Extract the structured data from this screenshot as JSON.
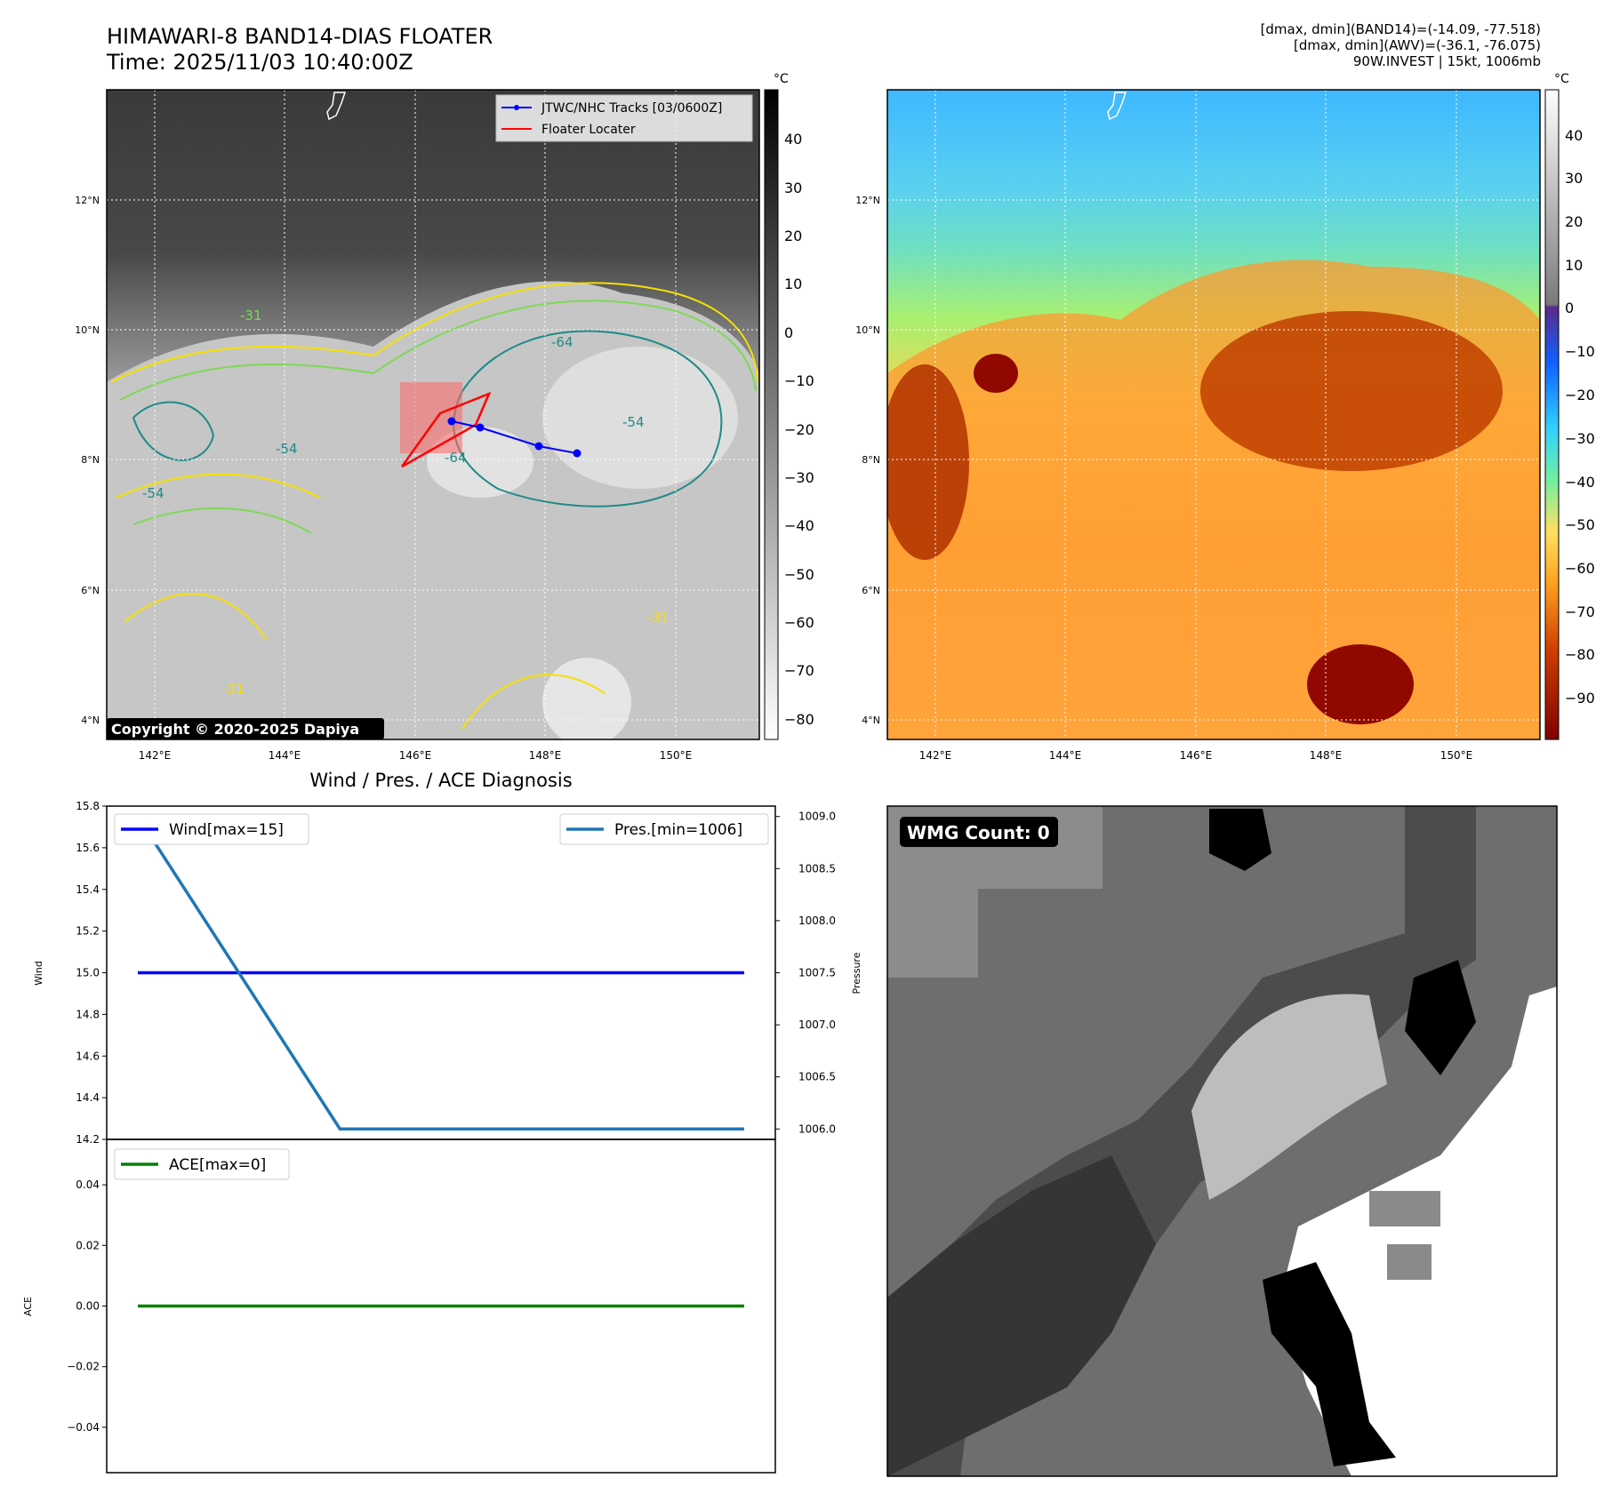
{
  "header": {
    "title_line1": "HIMAWARI-8 BAND14-DIAS FLOATER",
    "title_line2": "Time: 2025/11/03 10:40:00Z",
    "info_line1": "[dmax, dmin](BAND14)=(-14.09, -77.518)",
    "info_line2": "[dmax, dmin](AWV)=(-36.1, -76.075)",
    "info_line3": "90W.INVEST | 15kt, 1006mb"
  },
  "map_common": {
    "lon_ticks": [
      "142°E",
      "144°E",
      "146°E",
      "148°E",
      "150°E"
    ],
    "lat_ticks": [
      "4°N",
      "6°N",
      "8°N",
      "10°N",
      "12°N"
    ],
    "lon_range": [
      141.3,
      151.3
    ],
    "lat_range": [
      3.7,
      13.7
    ],
    "gridlines": "dotted-white"
  },
  "panel_ir": {
    "colorbar_unit": "°C",
    "colorbar_ticks": [
      "40",
      "30",
      "20",
      "10",
      "0",
      "−10",
      "−20",
      "−30",
      "−40",
      "−50",
      "−60",
      "−70",
      "−80"
    ],
    "legend": {
      "track_label": "JTWC/NHC Tracks [03/0600Z]",
      "locator_label": "Floater Locater"
    },
    "contour_labels": [
      "-31",
      "-54",
      "-64",
      "-54",
      "-31",
      "-64",
      "-54",
      "-31"
    ],
    "copyright": "Copyright © 2020-2025 Dapiya",
    "colors": {
      "track": "#0000ff",
      "locator": "#ff0000",
      "contour_yellow": "#f5e000",
      "contour_green": "#7ed957",
      "contour_teal": "#1f8a87",
      "contour_navy": "#2a2a7a"
    }
  },
  "panel_awv": {
    "colorbar_unit": "°C",
    "colorbar_ticks": [
      "40",
      "30",
      "20",
      "10",
      "0",
      "−10",
      "−20",
      "−30",
      "−40",
      "−50",
      "−60",
      "−70",
      "−80",
      "−90"
    ]
  },
  "panel_wmg": {
    "badge": "WMG Count: 0"
  },
  "chart_data": [
    {
      "type": "line",
      "title": "Wind / Pres. / ACE Diagnosis",
      "x": [
        0,
        1,
        2,
        3
      ],
      "series": [
        {
          "name": "Wind[max=15]",
          "axis": "left",
          "values": [
            15,
            15,
            15,
            15
          ],
          "color": "#0000ff"
        },
        {
          "name": "Pres.[min=1006]",
          "axis": "right",
          "values": [
            1009,
            1006,
            1006,
            1006
          ],
          "color": "#1f77b4"
        }
      ],
      "ylabel": "Wind",
      "ylabel_right": "Pressure",
      "ylim": [
        14.2,
        15.8
      ],
      "ylim_right": [
        1005.9,
        1009.1
      ],
      "yticks": [
        "15.8",
        "15.6",
        "15.4",
        "15.2",
        "15.0",
        "14.8",
        "14.6",
        "14.4",
        "14.2"
      ],
      "yticks_right": [
        "1009.0",
        "1008.5",
        "1008.0",
        "1007.5",
        "1007.0",
        "1006.5",
        "1006.0"
      ]
    },
    {
      "type": "line",
      "x": [
        0,
        1,
        2,
        3
      ],
      "series": [
        {
          "name": "ACE[max=0]",
          "values": [
            0,
            0,
            0,
            0
          ],
          "color": "#008000"
        }
      ],
      "ylabel": "ACE",
      "ylim": [
        -0.055,
        0.055
      ],
      "yticks": [
        "0.04",
        "0.02",
        "0.00",
        "−0.02",
        "−0.04"
      ]
    }
  ]
}
